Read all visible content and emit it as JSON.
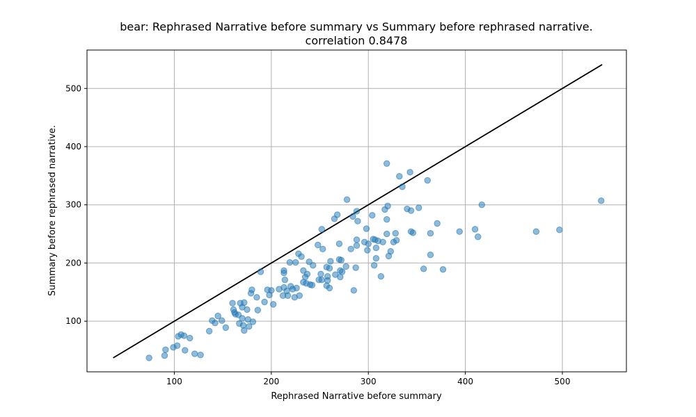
{
  "chart_data": {
    "type": "scatter",
    "title": "bear: Rephrased Narrative before summary vs Summary before rephrased narrative.",
    "subtitle": "correlation 0.8478",
    "xlabel": "Rephrased Narrative before summary",
    "ylabel": "Summary before rephrased narrative.",
    "xlim": [
      10,
      566
    ],
    "ylim": [
      13,
      566
    ],
    "xticks": [
      100,
      200,
      300,
      400,
      500
    ],
    "yticks": [
      100,
      200,
      300,
      400,
      500
    ],
    "grid": true,
    "colors": {
      "points": "#1f77b4",
      "line": "#000000"
    },
    "reference_line": {
      "x": [
        37,
        541
      ],
      "y": [
        37,
        541
      ]
    },
    "points": [
      [
        74,
        37
      ],
      [
        90,
        41
      ],
      [
        91,
        51
      ],
      [
        99,
        55
      ],
      [
        103,
        58
      ],
      [
        104,
        74
      ],
      [
        107,
        77
      ],
      [
        110,
        75
      ],
      [
        111,
        50
      ],
      [
        116,
        71
      ],
      [
        121,
        44
      ],
      [
        127,
        42
      ],
      [
        136,
        83
      ],
      [
        139,
        101
      ],
      [
        142,
        97
      ],
      [
        145,
        109
      ],
      [
        149,
        101
      ],
      [
        153,
        89
      ],
      [
        160,
        131
      ],
      [
        161,
        120
      ],
      [
        162,
        115
      ],
      [
        163,
        112
      ],
      [
        166,
        111
      ],
      [
        167,
        96
      ],
      [
        168,
        131
      ],
      [
        170,
        105
      ],
      [
        170,
        124
      ],
      [
        171,
        93
      ],
      [
        172,
        132
      ],
      [
        172,
        84
      ],
      [
        175,
        120
      ],
      [
        176,
        103
      ],
      [
        177,
        91
      ],
      [
        179,
        148
      ],
      [
        180,
        154
      ],
      [
        181,
        99
      ],
      [
        185,
        141
      ],
      [
        186,
        119
      ],
      [
        189,
        185
      ],
      [
        193,
        133
      ],
      [
        196,
        154
      ],
      [
        198,
        145
      ],
      [
        200,
        153
      ],
      [
        202,
        129
      ],
      [
        208,
        155
      ],
      [
        212,
        144
      ],
      [
        213,
        183
      ],
      [
        213,
        187
      ],
      [
        213,
        158
      ],
      [
        214,
        171
      ],
      [
        216,
        152
      ],
      [
        217,
        144
      ],
      [
        219,
        201
      ],
      [
        220,
        160
      ],
      [
        222,
        155
      ],
      [
        224,
        141
      ],
      [
        225,
        201
      ],
      [
        226,
        157
      ],
      [
        228,
        216
      ],
      [
        229,
        144
      ],
      [
        231,
        211
      ],
      [
        233,
        187
      ],
      [
        233,
        167
      ],
      [
        235,
        176
      ],
      [
        236,
        165
      ],
      [
        237,
        181
      ],
      [
        239,
        202
      ],
      [
        240,
        163
      ],
      [
        242,
        162
      ],
      [
        243,
        196
      ],
      [
        248,
        231
      ],
      [
        249,
        171
      ],
      [
        251,
        181
      ],
      [
        252,
        171
      ],
      [
        252,
        258
      ],
      [
        253,
        224
      ],
      [
        257,
        161
      ],
      [
        257,
        193
      ],
      [
        258,
        177
      ],
      [
        258,
        170
      ],
      [
        260,
        157
      ],
      [
        260,
        191
      ],
      [
        261,
        203
      ],
      [
        265,
        276
      ],
      [
        266,
        180
      ],
      [
        268,
        283
      ],
      [
        270,
        206
      ],
      [
        270,
        233
      ],
      [
        271,
        176
      ],
      [
        271,
        187
      ],
      [
        272,
        205
      ],
      [
        273,
        185
      ],
      [
        277,
        194
      ],
      [
        278,
        309
      ],
      [
        282,
        224
      ],
      [
        284,
        280
      ],
      [
        285,
        153
      ],
      [
        287,
        192
      ],
      [
        288,
        240
      ],
      [
        288,
        230
      ],
      [
        288,
        289
      ],
      [
        289,
        272
      ],
      [
        296,
        236
      ],
      [
        298,
        259
      ],
      [
        299,
        222
      ],
      [
        300,
        233
      ],
      [
        304,
        282
      ],
      [
        305,
        241
      ],
      [
        306,
        196
      ],
      [
        307,
        240
      ],
      [
        308,
        208
      ],
      [
        308,
        226
      ],
      [
        310,
        238
      ],
      [
        313,
        177
      ],
      [
        315,
        236
      ],
      [
        317,
        292
      ],
      [
        319,
        371
      ],
      [
        319,
        275
      ],
      [
        319,
        250
      ],
      [
        320,
        298
      ],
      [
        321,
        212
      ],
      [
        323,
        220
      ],
      [
        326,
        236
      ],
      [
        328,
        251
      ],
      [
        329,
        239
      ],
      [
        332,
        349
      ],
      [
        335,
        331
      ],
      [
        340,
        293
      ],
      [
        343,
        356
      ],
      [
        344,
        254
      ],
      [
        344,
        290
      ],
      [
        346,
        252
      ],
      [
        352,
        295
      ],
      [
        357,
        190
      ],
      [
        361,
        342
      ],
      [
        364,
        251
      ],
      [
        364,
        214
      ],
      [
        371,
        268
      ],
      [
        377,
        189
      ],
      [
        394,
        254
      ],
      [
        410,
        258
      ],
      [
        413,
        245
      ],
      [
        417,
        300
      ],
      [
        473,
        254
      ],
      [
        497,
        257
      ],
      [
        540,
        307
      ]
    ]
  }
}
